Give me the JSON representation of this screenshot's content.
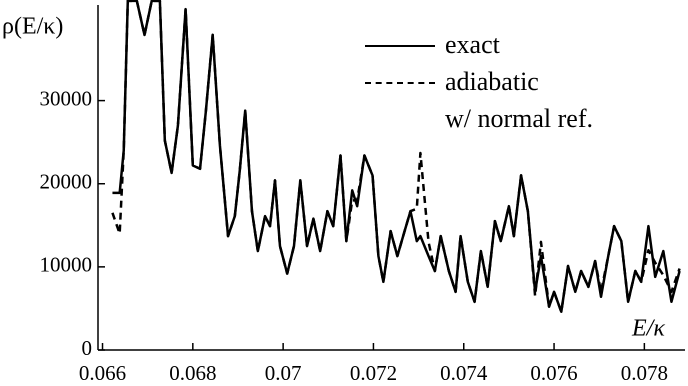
{
  "chart_data": {
    "type": "line",
    "ylabel": "ρ(E/κ)",
    "xlabel": "E/κ",
    "xlim": [
      0.0659,
      0.0789
    ],
    "ylim": [
      0,
      41500
    ],
    "xticks": [
      0.066,
      0.068,
      0.07,
      0.072,
      0.074,
      0.076,
      0.078
    ],
    "yticks": [
      0,
      10000,
      20000,
      30000
    ],
    "legend": "upper right",
    "x": [
      0.06622,
      0.06638,
      0.06647,
      0.06656,
      0.06676,
      0.06693,
      0.06709,
      0.06727,
      0.06738,
      0.06753,
      0.06767,
      0.06784,
      0.068,
      0.06816,
      0.06829,
      0.06844,
      0.0686,
      0.06878,
      0.06893,
      0.06904,
      0.06916,
      0.06931,
      0.06944,
      0.0696,
      0.06971,
      0.06982,
      0.06993,
      0.07009,
      0.07024,
      0.07038,
      0.07053,
      0.07067,
      0.07082,
      0.07098,
      0.07111,
      0.07127,
      0.0714,
      0.07153,
      0.07164,
      0.0718,
      0.07198,
      0.07211,
      0.07222,
      0.07238,
      0.07253,
      0.07269,
      0.07282,
      0.07296,
      0.07304,
      0.07322,
      0.07336,
      0.07349,
      0.07367,
      0.07382,
      0.07393,
      0.07409,
      0.07424,
      0.07438,
      0.07453,
      0.07469,
      0.07482,
      0.075,
      0.07511,
      0.07527,
      0.07542,
      0.07558,
      0.07571,
      0.07589,
      0.076,
      0.07616,
      0.07631,
      0.07647,
      0.0766,
      0.07676,
      0.07691,
      0.07704,
      0.0772,
      0.07733,
      0.07749,
      0.07764,
      0.0778,
      0.07793,
      0.07809,
      0.07824,
      0.07842,
      0.0786,
      0.07878
    ],
    "series": [
      {
        "name": "exact",
        "color": "#000000",
        "dash": "solid",
        "values": [
          18900,
          18900,
          24000,
          42000,
          42000,
          37900,
          42000,
          42000,
          25200,
          21300,
          27000,
          41000,
          22200,
          21800,
          28800,
          37900,
          24600,
          13700,
          16100,
          21600,
          28800,
          16700,
          11900,
          16100,
          14900,
          20400,
          12500,
          9200,
          12500,
          20400,
          12500,
          15800,
          11900,
          16700,
          14900,
          23400,
          13100,
          19200,
          17300,
          23400,
          21000,
          11300,
          8200,
          14300,
          11300,
          14300,
          16700,
          13100,
          13700,
          11300,
          9500,
          13700,
          9500,
          7000,
          13700,
          8200,
          5800,
          11900,
          7600,
          15500,
          13100,
          17300,
          13700,
          21000,
          16700,
          7000,
          11300,
          5200,
          7000,
          4600,
          10100,
          7000,
          9500,
          7600,
          10700,
          6400,
          11300,
          14900,
          13100,
          5800,
          9500,
          8200,
          14900,
          8800,
          11900,
          5800,
          9500
        ]
      },
      {
        "name": "adiabatic\nw/ normal ref.",
        "color": "#000000",
        "dash": "dashed",
        "values": [
          16500,
          14000,
          24000,
          42000,
          42000,
          37900,
          42000,
          42000,
          25200,
          21300,
          27000,
          41000,
          22200,
          21800,
          28800,
          37900,
          24600,
          13700,
          16100,
          21600,
          28800,
          16700,
          11900,
          16100,
          14900,
          20400,
          12500,
          9200,
          12500,
          20400,
          12500,
          15800,
          11900,
          16700,
          14900,
          23400,
          13100,
          18000,
          18000,
          23400,
          21000,
          11300,
          8200,
          14300,
          11300,
          14300,
          16700,
          17000,
          23700,
          13000,
          9500,
          13700,
          9500,
          7000,
          13700,
          8200,
          5800,
          11900,
          7600,
          15500,
          13100,
          17300,
          13700,
          21000,
          16700,
          6500,
          13000,
          5200,
          7000,
          4600,
          10100,
          7000,
          9500,
          7600,
          10700,
          7000,
          11300,
          14900,
          13100,
          5800,
          9500,
          8200,
          12000,
          10500,
          9000,
          7000,
          9800
        ]
      }
    ]
  }
}
